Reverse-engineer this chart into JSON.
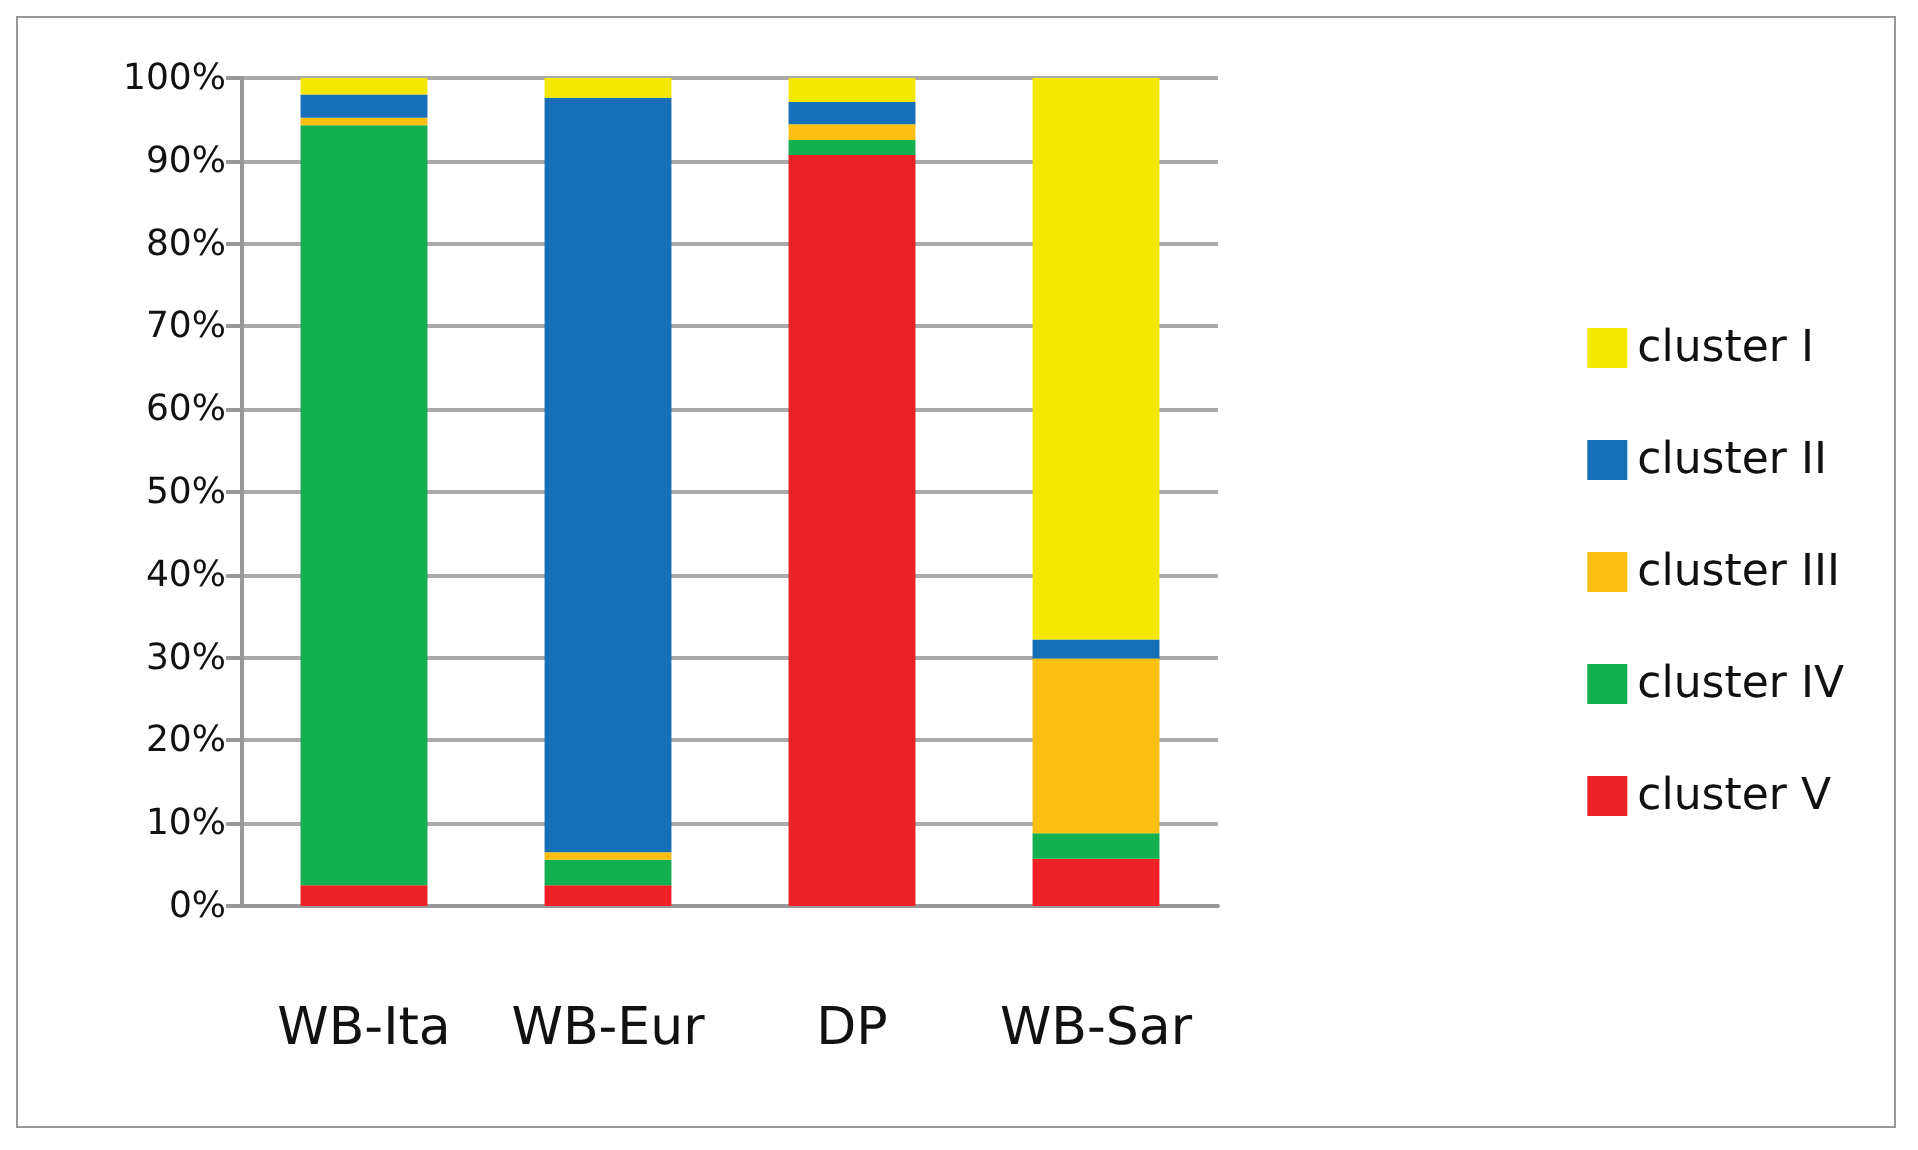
{
  "chart_data": {
    "type": "bar",
    "stacked": true,
    "categories": [
      "WB-Ita",
      "WB-Eur",
      "DP",
      "WB-Sar"
    ],
    "series": [
      {
        "name": "cluster V",
        "color": "#ee2127",
        "values": [
          2.5,
          2.5,
          90.7,
          5.7
        ]
      },
      {
        "name": "cluster IV",
        "color": "#12b04f",
        "values": [
          91.8,
          3.1,
          1.8,
          3.1
        ]
      },
      {
        "name": "cluster III",
        "color": "#fcbf12",
        "values": [
          0.9,
          0.9,
          1.9,
          21.1
        ]
      },
      {
        "name": "cluster II",
        "color": "#166fb7",
        "values": [
          2.8,
          91.1,
          2.7,
          2.3
        ]
      },
      {
        "name": "cluster I",
        "color": "#f5e800",
        "values": [
          2.0,
          2.4,
          2.9,
          67.8
        ]
      }
    ],
    "ylim": [
      0,
      100
    ],
    "yticks": [
      {
        "value": 0,
        "label": "0%"
      },
      {
        "value": 10,
        "label": "10%"
      },
      {
        "value": 20,
        "label": "20%"
      },
      {
        "value": 30,
        "label": "30%"
      },
      {
        "value": 40,
        "label": "40%"
      },
      {
        "value": 50,
        "label": "50%"
      },
      {
        "value": 60,
        "label": "60%"
      },
      {
        "value": 70,
        "label": "70%"
      },
      {
        "value": 80,
        "label": "80%"
      },
      {
        "value": 90,
        "label": "90%"
      },
      {
        "value": 100,
        "label": "100%"
      }
    ],
    "grid": "y",
    "legend": "right"
  }
}
